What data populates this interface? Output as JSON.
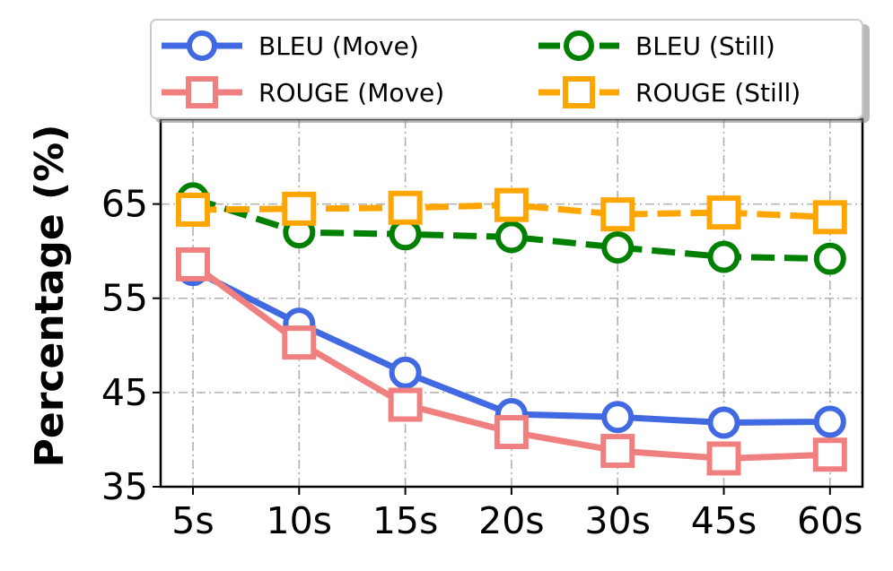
{
  "chart_data": {
    "type": "line",
    "title": "",
    "xlabel": "",
    "ylabel": "Percentage (%)",
    "categories": [
      "5s",
      "10s",
      "15s",
      "20s",
      "30s",
      "45s",
      "60s"
    ],
    "yticks": [
      "35",
      "45",
      "55",
      "65"
    ],
    "ylim": [
      35,
      74
    ],
    "grid": true,
    "legend": {
      "placement": "top",
      "columns": 2
    },
    "series": [
      {
        "name": "BLEU (Move)",
        "values": [
          58.0,
          52.3,
          47.1,
          42.7,
          42.4,
          41.8,
          41.9
        ],
        "color": "#4169e1",
        "marker": "circle",
        "dash": "solid"
      },
      {
        "name": "ROUGE (Move)",
        "values": [
          58.6,
          50.3,
          43.7,
          40.8,
          38.8,
          38.0,
          38.4
        ],
        "color": "#f08080",
        "marker": "square",
        "dash": "solid"
      },
      {
        "name": "BLEU (Still)",
        "values": [
          65.6,
          62.0,
          61.8,
          61.5,
          60.4,
          59.4,
          59.2
        ],
        "color": "#008000",
        "marker": "circle",
        "dash": "dashed"
      },
      {
        "name": "ROUGE (Still)",
        "values": [
          64.4,
          64.5,
          64.6,
          64.9,
          63.9,
          64.1,
          63.6
        ],
        "color": "#ffa500",
        "marker": "square",
        "dash": "dashed"
      }
    ]
  }
}
